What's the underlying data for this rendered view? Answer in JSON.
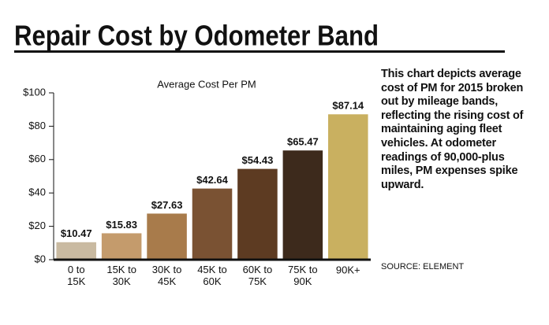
{
  "chart_data": {
    "type": "bar",
    "title": "Repair Cost by Odometer Band",
    "subtitle": "Average Cost Per PM",
    "categories": [
      "0 to 15K",
      "15K to 30K",
      "30K to 45K",
      "45K to 60K",
      "60K to 75K",
      "75K to 90K",
      "90K+"
    ],
    "values": [
      10.47,
      15.83,
      27.63,
      42.64,
      54.43,
      65.47,
      87.14
    ],
    "value_labels": [
      "$10.47",
      "$15.83",
      "$27.63",
      "$42.64",
      "$54.43",
      "$65.47",
      "$87.14"
    ],
    "colors": [
      "#c9baa1",
      "#c49b6c",
      "#a87b4b",
      "#7a5233",
      "#5d3b22",
      "#3d2a1c",
      "#c9b060"
    ],
    "ylim": [
      0,
      100
    ],
    "yticks": [
      {
        "value": 0,
        "label": "$0"
      },
      {
        "value": 20,
        "label": "$20"
      },
      {
        "value": 40,
        "label": "$40"
      },
      {
        "value": 60,
        "label": "$60"
      },
      {
        "value": 80,
        "label": "$80"
      },
      {
        "value": 100,
        "label": "$100"
      }
    ],
    "grid": false,
    "description": "This chart depicts average cost of PM for 2015 broken out by mileage bands, reflecting the rising cost of maintaining aging fleet vehicles. At odometer readings of 90,000-plus miles, PM expenses spike upward.",
    "source": "SOURCE: ELEMENT"
  }
}
